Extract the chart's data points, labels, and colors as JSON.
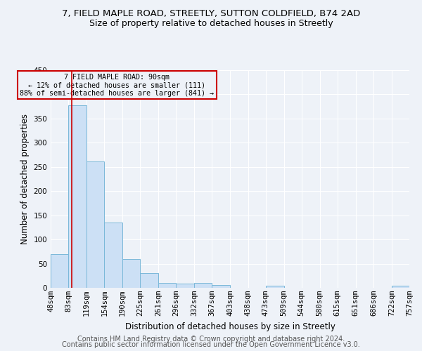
{
  "title1": "7, FIELD MAPLE ROAD, STREETLY, SUTTON COLDFIELD, B74 2AD",
  "title2": "Size of property relative to detached houses in Streetly",
  "xlabel": "Distribution of detached houses by size in Streetly",
  "ylabel": "Number of detached properties",
  "footer1": "Contains HM Land Registry data © Crown copyright and database right 2024.",
  "footer2": "Contains public sector information licensed under the Open Government Licence v3.0.",
  "annotation_line1": "7 FIELD MAPLE ROAD: 90sqm",
  "annotation_line2": "← 12% of detached houses are smaller (111)",
  "annotation_line3": "88% of semi-detached houses are larger (841) →",
  "property_size": 90,
  "bar_color": "#cce0f5",
  "bar_edge_color": "#7ab8d9",
  "vline_color": "#cc0000",
  "annotation_box_edge": "#cc0000",
  "bins": [
    48,
    83,
    119,
    154,
    190,
    225,
    261,
    296,
    332,
    367,
    403,
    438,
    473,
    509,
    544,
    580,
    615,
    651,
    686,
    722,
    757
  ],
  "values": [
    70,
    378,
    262,
    135,
    59,
    30,
    10,
    9,
    10,
    6,
    0,
    0,
    4,
    0,
    0,
    0,
    0,
    0,
    0,
    5
  ],
  "ylim": [
    0,
    450
  ],
  "yticks": [
    0,
    50,
    100,
    150,
    200,
    250,
    300,
    350,
    400,
    450
  ],
  "background_color": "#eef2f8",
  "grid_color": "#ffffff",
  "title1_fontsize": 9.5,
  "title2_fontsize": 9,
  "label_fontsize": 8.5,
  "tick_fontsize": 7.5,
  "footer_fontsize": 7
}
